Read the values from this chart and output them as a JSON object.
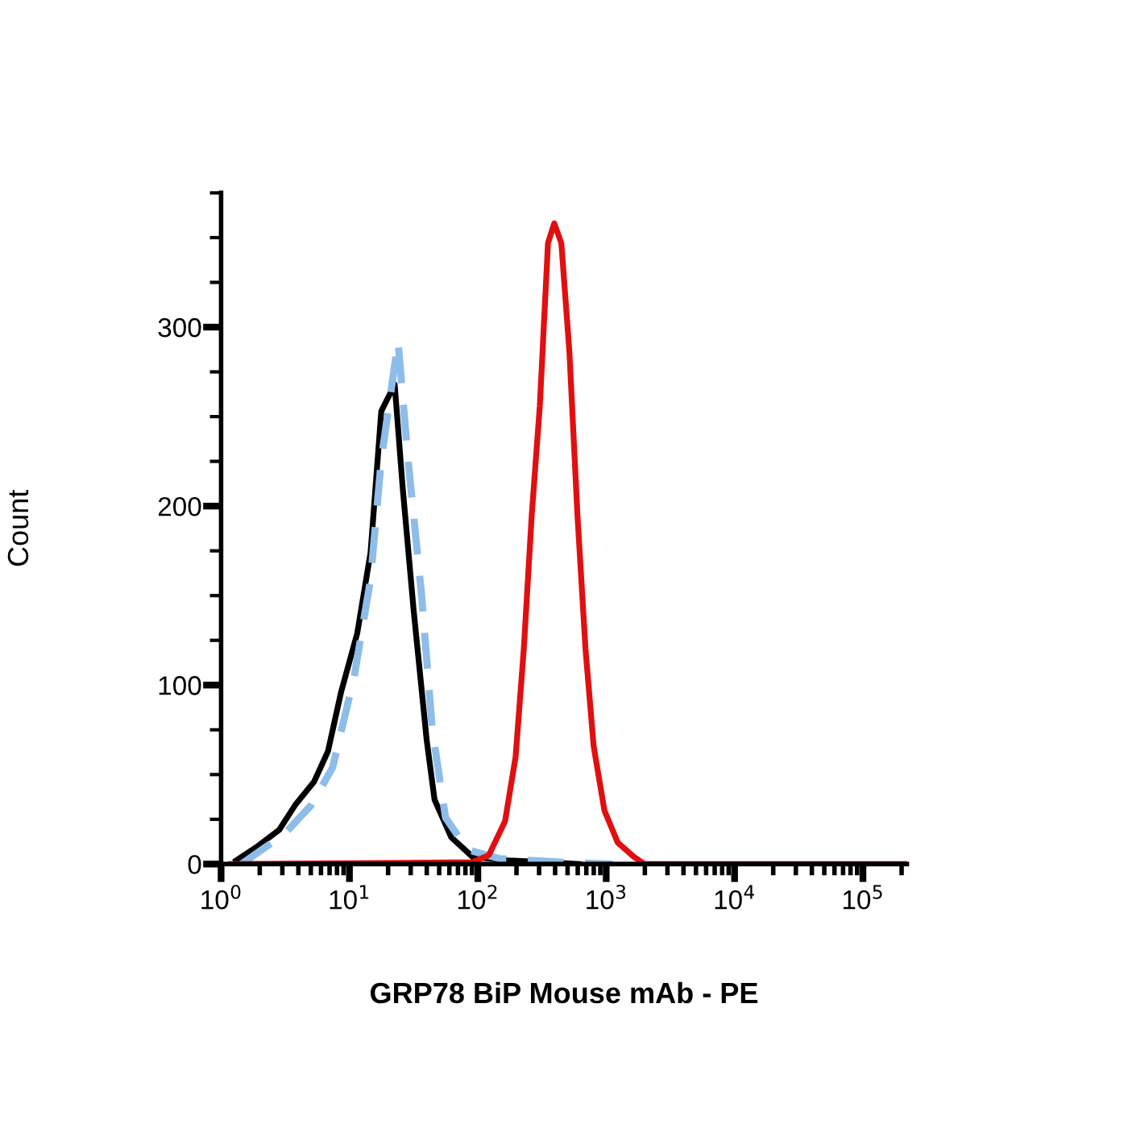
{
  "chart_data": {
    "type": "line",
    "xlabel": "GRP78 BiP Mouse mAb - PE",
    "ylabel": "Count",
    "log": "x",
    "xlim": [
      1,
      220000
    ],
    "xticks": [
      {
        "value": 1,
        "label": "10$^{0}$"
      },
      {
        "value": 10,
        "label": "10$^{1}$"
      },
      {
        "value": 100,
        "label": "10$^{2}$"
      },
      {
        "value": 1000,
        "label": "10$^{3}$"
      },
      {
        "value": 10000,
        "label": "10$^{4}$"
      },
      {
        "value": 100000,
        "label": "10$^{5}$"
      }
    ],
    "ylim": [
      0,
      375
    ],
    "yticks": [
      0,
      {
        "value": 25,
        "label": null
      },
      {
        "value": 50,
        "label": null
      },
      {
        "value": 75,
        "label": null
      },
      100,
      {
        "value": 125,
        "label": null
      },
      {
        "value": 150,
        "label": null
      },
      {
        "value": 175,
        "label": null
      },
      200,
      {
        "value": 225,
        "label": null
      },
      {
        "value": 250,
        "label": null
      },
      {
        "value": 275,
        "label": null
      },
      300,
      {
        "value": 325,
        "label": null
      },
      {
        "value": 350,
        "label": null
      },
      {
        "value": 375,
        "label": null
      }
    ],
    "grid": false,
    "marker": "none",
    "series": [
      {
        "color": "#000000",
        "line_style": "solid",
        "x": [
          1.31,
          1.93,
          2.83,
          3.78,
          5.3,
          6.8,
          8.6,
          11.5,
          14.6,
          17.7,
          22.5,
          26,
          31.6,
          40,
          46,
          62,
          91,
          171,
          350,
          610
        ],
        "values": [
          2,
          10,
          19,
          33,
          46,
          63,
          96,
          129,
          174,
          253,
          268,
          210,
          142,
          69,
          36,
          15,
          4,
          2,
          1,
          0
        ]
      },
      {
        "color": "#8dbde8",
        "line_style": "dashed",
        "x": [
          1.44,
          3.13,
          5.05,
          7.4,
          10.9,
          14.6,
          17.7,
          23.9,
          28.6,
          36.5,
          44.2,
          56,
          83,
          148,
          470,
          1120
        ],
        "values": [
          0,
          17,
          33,
          54,
          105,
          159,
          226,
          292,
          226,
          150,
          75,
          26,
          8,
          3,
          1,
          0
        ]
      },
      {
        "color": "#e01010",
        "line_style": "solid",
        "x": [
          1.2,
          91,
          122,
          163,
          197,
          228,
          263,
          304,
          352,
          394,
          447,
          517,
          597,
          690,
          798,
          968,
          1230,
          1645,
          1995,
          220000
        ],
        "values": [
          0,
          1,
          5,
          24,
          60,
          120,
          195,
          256,
          347,
          358,
          347,
          286,
          195,
          120,
          66,
          30,
          12,
          4,
          0,
          0
        ]
      }
    ]
  }
}
